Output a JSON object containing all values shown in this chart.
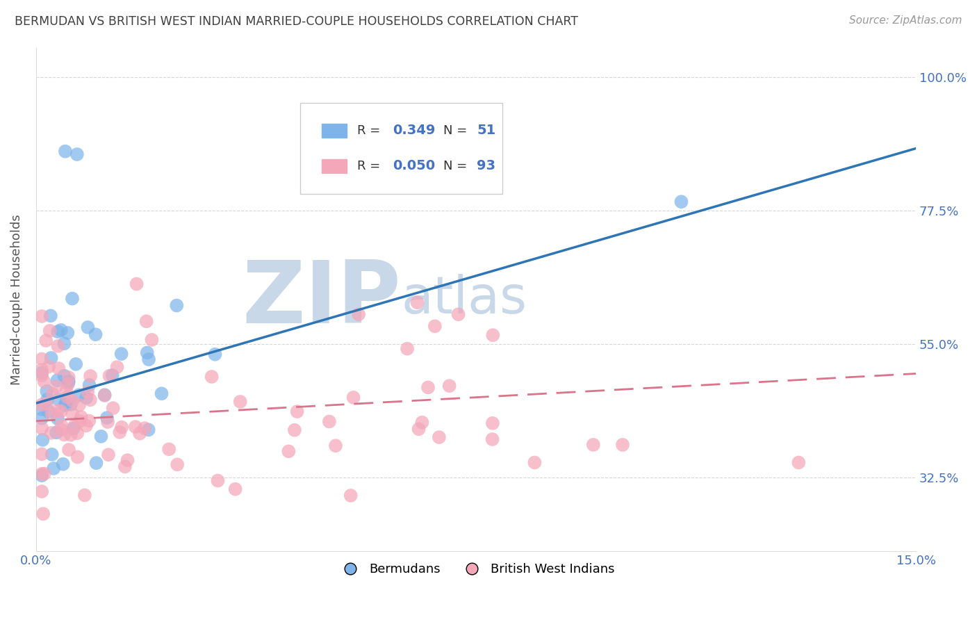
{
  "title": "BERMUDAN VS BRITISH WEST INDIAN MARRIED-COUPLE HOUSEHOLDS CORRELATION CHART",
  "source": "Source: ZipAtlas.com",
  "ylabel": "Married-couple Households",
  "xlim": [
    0.0,
    0.15
  ],
  "ylim": [
    0.2,
    1.05
  ],
  "yticks": [
    0.325,
    0.55,
    0.775,
    1.0
  ],
  "ytick_labels": [
    "32.5%",
    "55.0%",
    "77.5%",
    "100.0%"
  ],
  "xticks": [
    0.0,
    0.025,
    0.05,
    0.075,
    0.1,
    0.125,
    0.15
  ],
  "xtick_labels": [
    "0.0%",
    "",
    "",
    "",
    "",
    "",
    "15.0%"
  ],
  "bermudans_color": "#7EB4EA",
  "bwi_color": "#F4A7B9",
  "line_blue": "#2E75B6",
  "line_pink": "#D9748A",
  "watermark_zip": "ZIP",
  "watermark_atlas": "atlas",
  "watermark_color": "#C8D8E8",
  "title_color": "#404040",
  "axis_color": "#4472C4",
  "background_color": "#FFFFFF",
  "grid_color": "#CCCCCC",
  "blue_line_x0": 0.0,
  "blue_line_y0": 0.45,
  "blue_line_x1": 0.15,
  "blue_line_y1": 0.88,
  "pink_line_x0": 0.0,
  "pink_line_y0": 0.42,
  "pink_line_x1": 0.15,
  "pink_line_y1": 0.5
}
